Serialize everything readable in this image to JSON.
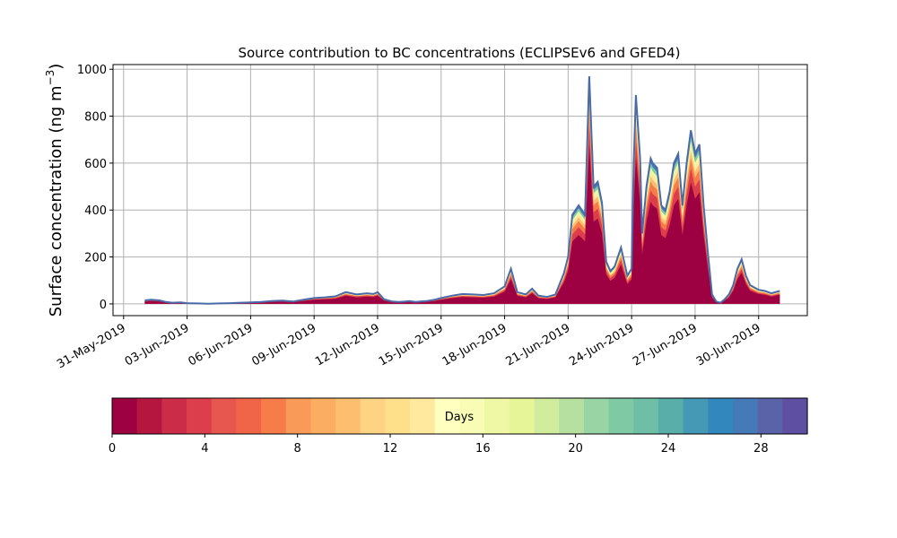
{
  "chart_data": {
    "type": "area",
    "title": "Source contribution to BC concentrations (ECLIPSEv6 and GFED4)",
    "ylabel_main": "Surface concentration (ng m",
    "ylabel_sup": "−3",
    "ylabel_close": ")",
    "xlabel": "",
    "ylim": [
      -50,
      1020
    ],
    "y_ticks": [
      0,
      200,
      400,
      600,
      800,
      1000
    ],
    "x_tick_labels": [
      "31-May-2019",
      "03-Jun-2019",
      "06-Jun-2019",
      "09-Jun-2019",
      "12-Jun-2019",
      "15-Jun-2019",
      "18-Jun-2019",
      "21-Jun-2019",
      "24-Jun-2019",
      "27-Jun-2019",
      "30-Jun-2019"
    ],
    "x_tick_days": [
      0,
      3,
      6,
      9,
      12,
      15,
      18,
      21,
      24,
      27,
      30
    ],
    "x_range_days": [
      -0.5,
      32.3
    ],
    "grid": true,
    "series_note": "stacked contributions by source age in days",
    "total_series": {
      "x_days": [
        1.0,
        1.3,
        1.7,
        2.0,
        2.3,
        2.7,
        3.0,
        3.5,
        4.0,
        4.5,
        5.0,
        5.5,
        6.0,
        6.5,
        7.0,
        7.5,
        8.0,
        8.5,
        9.0,
        9.5,
        10.0,
        10.5,
        11.0,
        11.5,
        11.8,
        12.0,
        12.3,
        12.7,
        13.0,
        13.3,
        13.5,
        13.8,
        14.0,
        14.3,
        14.7,
        15.0,
        15.5,
        16.0,
        16.5,
        17.0,
        17.5,
        18.0,
        18.3,
        18.6,
        19.0,
        19.3,
        19.6,
        20.0,
        20.4,
        20.8,
        21.0,
        21.2,
        21.5,
        21.8,
        22.0,
        22.2,
        22.4,
        22.6,
        22.8,
        23.0,
        23.2,
        23.5,
        23.8,
        24.0,
        24.1,
        24.2,
        24.4,
        24.5,
        24.7,
        24.9,
        25.0,
        25.2,
        25.4,
        25.6,
        25.8,
        26.0,
        26.2,
        26.4,
        26.6,
        26.8,
        27.0,
        27.2,
        27.4,
        27.6,
        27.8,
        28.0,
        28.2,
        28.4,
        28.6,
        28.8,
        29.0,
        29.2,
        29.4,
        29.6,
        29.8,
        30.0,
        30.3,
        30.6,
        31.0
      ],
      "y": [
        15,
        18,
        15,
        8,
        5,
        6,
        3,
        2,
        1,
        2,
        3,
        5,
        6,
        8,
        12,
        14,
        10,
        18,
        25,
        28,
        32,
        50,
        40,
        45,
        42,
        50,
        20,
        10,
        8,
        10,
        12,
        8,
        10,
        12,
        18,
        25,
        35,
        42,
        40,
        38,
        45,
        75,
        150,
        50,
        40,
        65,
        35,
        30,
        40,
        130,
        200,
        380,
        420,
        380,
        970,
        500,
        520,
        430,
        180,
        140,
        160,
        240,
        120,
        150,
        600,
        890,
        620,
        300,
        500,
        620,
        600,
        580,
        420,
        400,
        480,
        600,
        640,
        420,
        600,
        740,
        640,
        680,
        420,
        220,
        40,
        10,
        5,
        20,
        40,
        80,
        150,
        190,
        120,
        80,
        70,
        60,
        55,
        45,
        55
      ]
    },
    "colorbar": {
      "label": "Days",
      "min": 0,
      "max": 30,
      "ticks": [
        0,
        4,
        8,
        12,
        16,
        20,
        24,
        28
      ],
      "colors": [
        "#9e0142",
        "#b5163f",
        "#cb2d48",
        "#dc3e4c",
        "#e75750",
        "#f06547",
        "#f67c4a",
        "#fa9a58",
        "#fbad61",
        "#fdbf6f",
        "#fed384",
        "#fee08b",
        "#fee99e",
        "#ffffbf",
        "#f8fcb4",
        "#eef8a5",
        "#e6f598",
        "#d1ec9c",
        "#b6e0a0",
        "#99d4a4",
        "#7fcaa5",
        "#6ebfa6",
        "#5aaea9",
        "#4599b5",
        "#3288bd",
        "#457ab8",
        "#5a63a8",
        "#5e4fa2"
      ]
    }
  }
}
